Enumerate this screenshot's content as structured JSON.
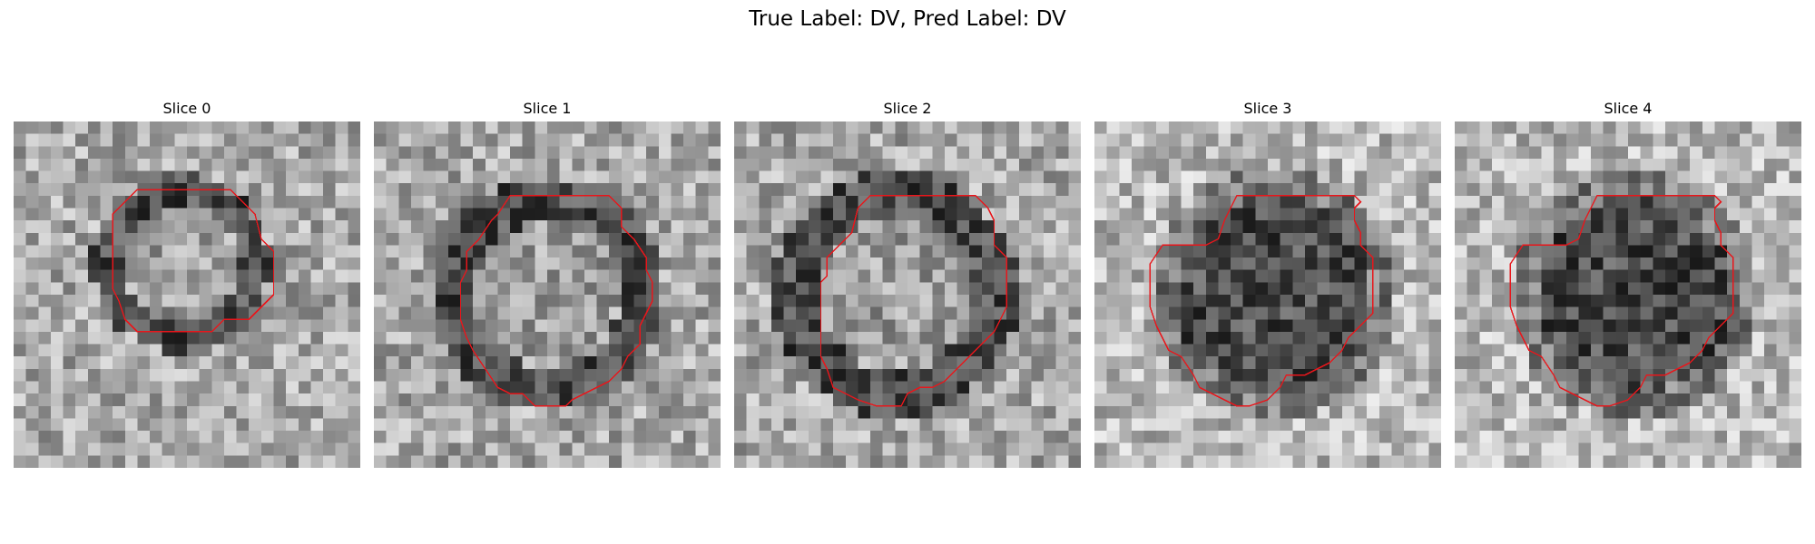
{
  "figure": {
    "suptitle": "True Label: DV, Pred Label: DV",
    "contour_color": "#e8161b",
    "colormap": "gray",
    "grid_size": 28
  },
  "slices": [
    {
      "title": "Slice 0",
      "seed": 11,
      "kind": "bright-center",
      "center": [
        13.5,
        11.5
      ],
      "radius": 5.3
    },
    {
      "title": "Slice 1",
      "seed": 23,
      "kind": "bright-center",
      "center": [
        14.0,
        14.0
      ],
      "radius": 7.0
    },
    {
      "title": "Slice 2",
      "seed": 37,
      "kind": "bright-center",
      "center": [
        13.0,
        14.0
      ],
      "radius": 7.3
    },
    {
      "title": "Slice 3",
      "seed": 51,
      "kind": "dark-center",
      "center": [
        14.5,
        14.0
      ],
      "radius": 8.0
    },
    {
      "title": "Slice 4",
      "seed": 67,
      "kind": "dark-center",
      "center": [
        14.5,
        14.0
      ],
      "radius": 8.0
    }
  ]
}
